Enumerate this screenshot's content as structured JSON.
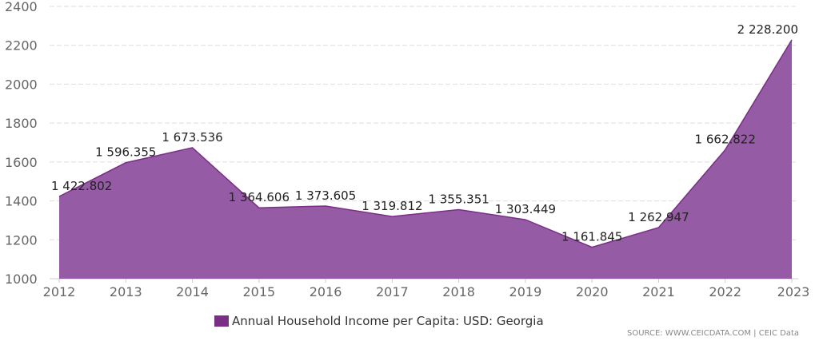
{
  "colors": {
    "area_fill": "#955ba5",
    "area_line": "#7a2e86",
    "legend_swatch": "#7a2e86",
    "grid": "#dddddd"
  },
  "legend": {
    "label": "Annual Household Income per Capita: USD: Georgia"
  },
  "source": {
    "text": "SOURCE: WWW.CEICDATA.COM | CEIC Data"
  },
  "chart_data": {
    "type": "area",
    "categories": [
      "2012",
      "2013",
      "2014",
      "2015",
      "2016",
      "2017",
      "2018",
      "2019",
      "2020",
      "2021",
      "2022",
      "2023"
    ],
    "series": [
      {
        "name": "Annual Household Income per Capita: USD: Georgia",
        "values": [
          1422.802,
          1596.355,
          1673.536,
          1364.606,
          1373.605,
          1319.812,
          1355.351,
          1303.449,
          1161.845,
          1262.947,
          1662.822,
          2228.2
        ],
        "labels": [
          "1 422.802",
          "1 596.355",
          "1 673.536",
          "1 364.606",
          "1 373.605",
          "1 319.812",
          "1 355.351",
          "1 303.449",
          "1 161.845",
          "1 262.947",
          "1 662.822",
          "2 228.200"
        ]
      }
    ],
    "yticks": [
      "1000",
      "1200",
      "1400",
      "1600",
      "1800",
      "2000",
      "2200",
      "2400"
    ],
    "ylim": [
      1000,
      2400
    ],
    "grid": true,
    "legend_position": "bottom-center",
    "title": "",
    "xlabel": "",
    "ylabel": ""
  }
}
